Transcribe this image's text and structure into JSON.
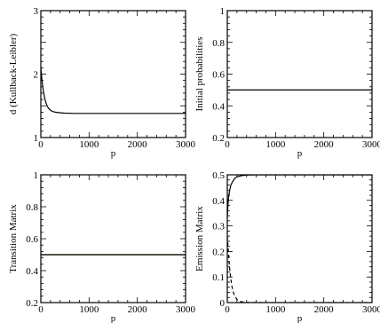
{
  "chart_data": [
    {
      "type": "line",
      "xlabel": "p",
      "ylabel": "d (Kullback-Leibler)",
      "xlim": [
        0,
        3000
      ],
      "ylim": [
        1,
        3
      ],
      "xticks": [
        0,
        1000,
        2000,
        3000
      ],
      "yticks": [
        1,
        1.5,
        2,
        2.5,
        3
      ],
      "xtick_labels": [
        "0",
        "1000",
        "2000",
        "3000"
      ],
      "ytick_labels": [
        "1",
        "",
        "2",
        "",
        "3"
      ],
      "series": [
        {
          "color": "#000000",
          "dash": "solid",
          "x": [
            0,
            20,
            40,
            60,
            80,
            100,
            130,
            160,
            200,
            250,
            300,
            400,
            500,
            700,
            1000,
            2000,
            3000
          ],
          "y": [
            2.1,
            1.93,
            1.8,
            1.7,
            1.62,
            1.56,
            1.5,
            1.46,
            1.43,
            1.41,
            1.4,
            1.39,
            1.385,
            1.38,
            1.38,
            1.38,
            1.38
          ]
        }
      ]
    },
    {
      "type": "line",
      "xlabel": "p",
      "ylabel": "Initial probabilities",
      "xlim": [
        0,
        3000
      ],
      "ylim": [
        0.2,
        1
      ],
      "xticks": [
        0,
        1000,
        2000,
        3000
      ],
      "yticks": [
        0.2,
        0.4,
        0.6,
        0.8,
        1
      ],
      "xtick_labels": [
        "0",
        "1000",
        "2000",
        "3000"
      ],
      "ytick_labels": [
        "0.2",
        "0.4",
        "0.6",
        "0.8",
        "1"
      ],
      "series": [
        {
          "color": "#000000",
          "dash": "solid",
          "x": [
            0,
            3000
          ],
          "y": [
            0.5,
            0.5
          ]
        }
      ]
    },
    {
      "type": "line",
      "xlabel": "p",
      "ylabel": "Transition Matrix",
      "xlim": [
        0,
        3000
      ],
      "ylim": [
        0.2,
        1
      ],
      "xticks": [
        0,
        1000,
        2000,
        3000
      ],
      "yticks": [
        0.2,
        0.4,
        0.6,
        0.8,
        1
      ],
      "xtick_labels": [
        "0",
        "1000",
        "2000",
        "3000"
      ],
      "ytick_labels": [
        "0.2",
        "0.4",
        "0.6",
        "0.8",
        "1"
      ],
      "series": [
        {
          "color": "#8a6a00",
          "dash": "solid",
          "x": [
            0,
            3000
          ],
          "y": [
            0.5,
            0.5
          ]
        },
        {
          "color": "#000000",
          "dash": "solid",
          "x": [
            0,
            3000
          ],
          "y": [
            0.5,
            0.5
          ]
        }
      ]
    },
    {
      "type": "line",
      "xlabel": "p",
      "ylabel": "Emission Matrix",
      "xlim": [
        0,
        3000
      ],
      "ylim": [
        0,
        0.5
      ],
      "xticks": [
        0,
        1000,
        2000,
        3000
      ],
      "yticks": [
        0,
        0.1,
        0.2,
        0.3,
        0.4,
        0.5
      ],
      "xtick_labels": [
        "0",
        "1000",
        "2000",
        "3000"
      ],
      "ytick_labels": [
        "0",
        "0.1",
        "0.2",
        "0.3",
        "0.4",
        "0.5"
      ],
      "series": [
        {
          "color": "#000000",
          "dash": "solid",
          "x": [
            0,
            10,
            25,
            50,
            75,
            100,
            150,
            200,
            300,
            400,
            600,
            1000,
            3000
          ],
          "y": [
            0.33,
            0.37,
            0.41,
            0.44,
            0.46,
            0.47,
            0.485,
            0.492,
            0.497,
            0.499,
            0.5,
            0.5,
            0.5
          ]
        },
        {
          "color": "#000000",
          "dash": "dashed",
          "x": [
            0,
            10,
            25,
            50,
            75,
            100,
            125,
            150,
            200,
            250,
            300,
            400,
            600,
            1000,
            3000
          ],
          "y": [
            0.26,
            0.23,
            0.19,
            0.13,
            0.09,
            0.06,
            0.04,
            0.028,
            0.012,
            0.006,
            0.003,
            0.001,
            0,
            0,
            0
          ]
        }
      ]
    }
  ]
}
